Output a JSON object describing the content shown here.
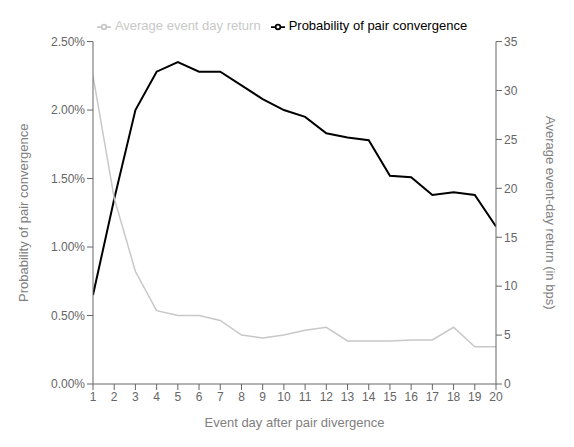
{
  "chart_data": {
    "type": "line",
    "xlabel": "Event day after pair divergence",
    "ylabel": "Probability of pair convergence",
    "y2label": "Average event-day return (in bps)",
    "x": [
      1,
      2,
      3,
      4,
      5,
      6,
      7,
      8,
      9,
      10,
      11,
      12,
      13,
      14,
      15,
      16,
      17,
      18,
      19,
      20
    ],
    "xlim": [
      1,
      20
    ],
    "xticks": [
      1,
      2,
      3,
      4,
      5,
      6,
      7,
      8,
      9,
      10,
      11,
      12,
      13,
      14,
      15,
      16,
      17,
      18,
      19,
      20
    ],
    "ylim": [
      0.0,
      0.025
    ],
    "yticks": [
      {
        "value": 0.0,
        "label": "0.00%"
      },
      {
        "value": 0.005,
        "label": "0.50%"
      },
      {
        "value": 0.01,
        "label": "1.00%"
      },
      {
        "value": 0.015,
        "label": "1.50%"
      },
      {
        "value": 0.02,
        "label": "2.00%"
      },
      {
        "value": 0.025,
        "label": "2.50%"
      }
    ],
    "y2lim": [
      0,
      35
    ],
    "y2ticks": [
      0,
      5,
      10,
      15,
      20,
      25,
      30,
      35
    ],
    "grid": false,
    "legend": "top",
    "series": [
      {
        "name": "Probability of pair convergence",
        "color": "#000000",
        "values": [
          0.0065,
          0.0135,
          0.02,
          0.0228,
          0.0235,
          0.0228,
          0.0228,
          0.0218,
          0.0208,
          0.02,
          0.0195,
          0.0183,
          0.018,
          0.0178,
          0.0152,
          0.0151,
          0.0138,
          0.014,
          0.0138,
          0.0115
        ]
      },
      {
        "name": "Average event day return",
        "color": "#c8c8c8",
        "axis": "y2",
        "values": [
          31.5,
          19.0,
          11.5,
          7.5,
          7.0,
          7.0,
          6.5,
          5.0,
          4.7,
          5.0,
          5.5,
          5.8,
          4.4,
          4.4,
          4.4,
          4.5,
          4.5,
          5.8,
          3.8,
          3.8
        ]
      }
    ]
  }
}
